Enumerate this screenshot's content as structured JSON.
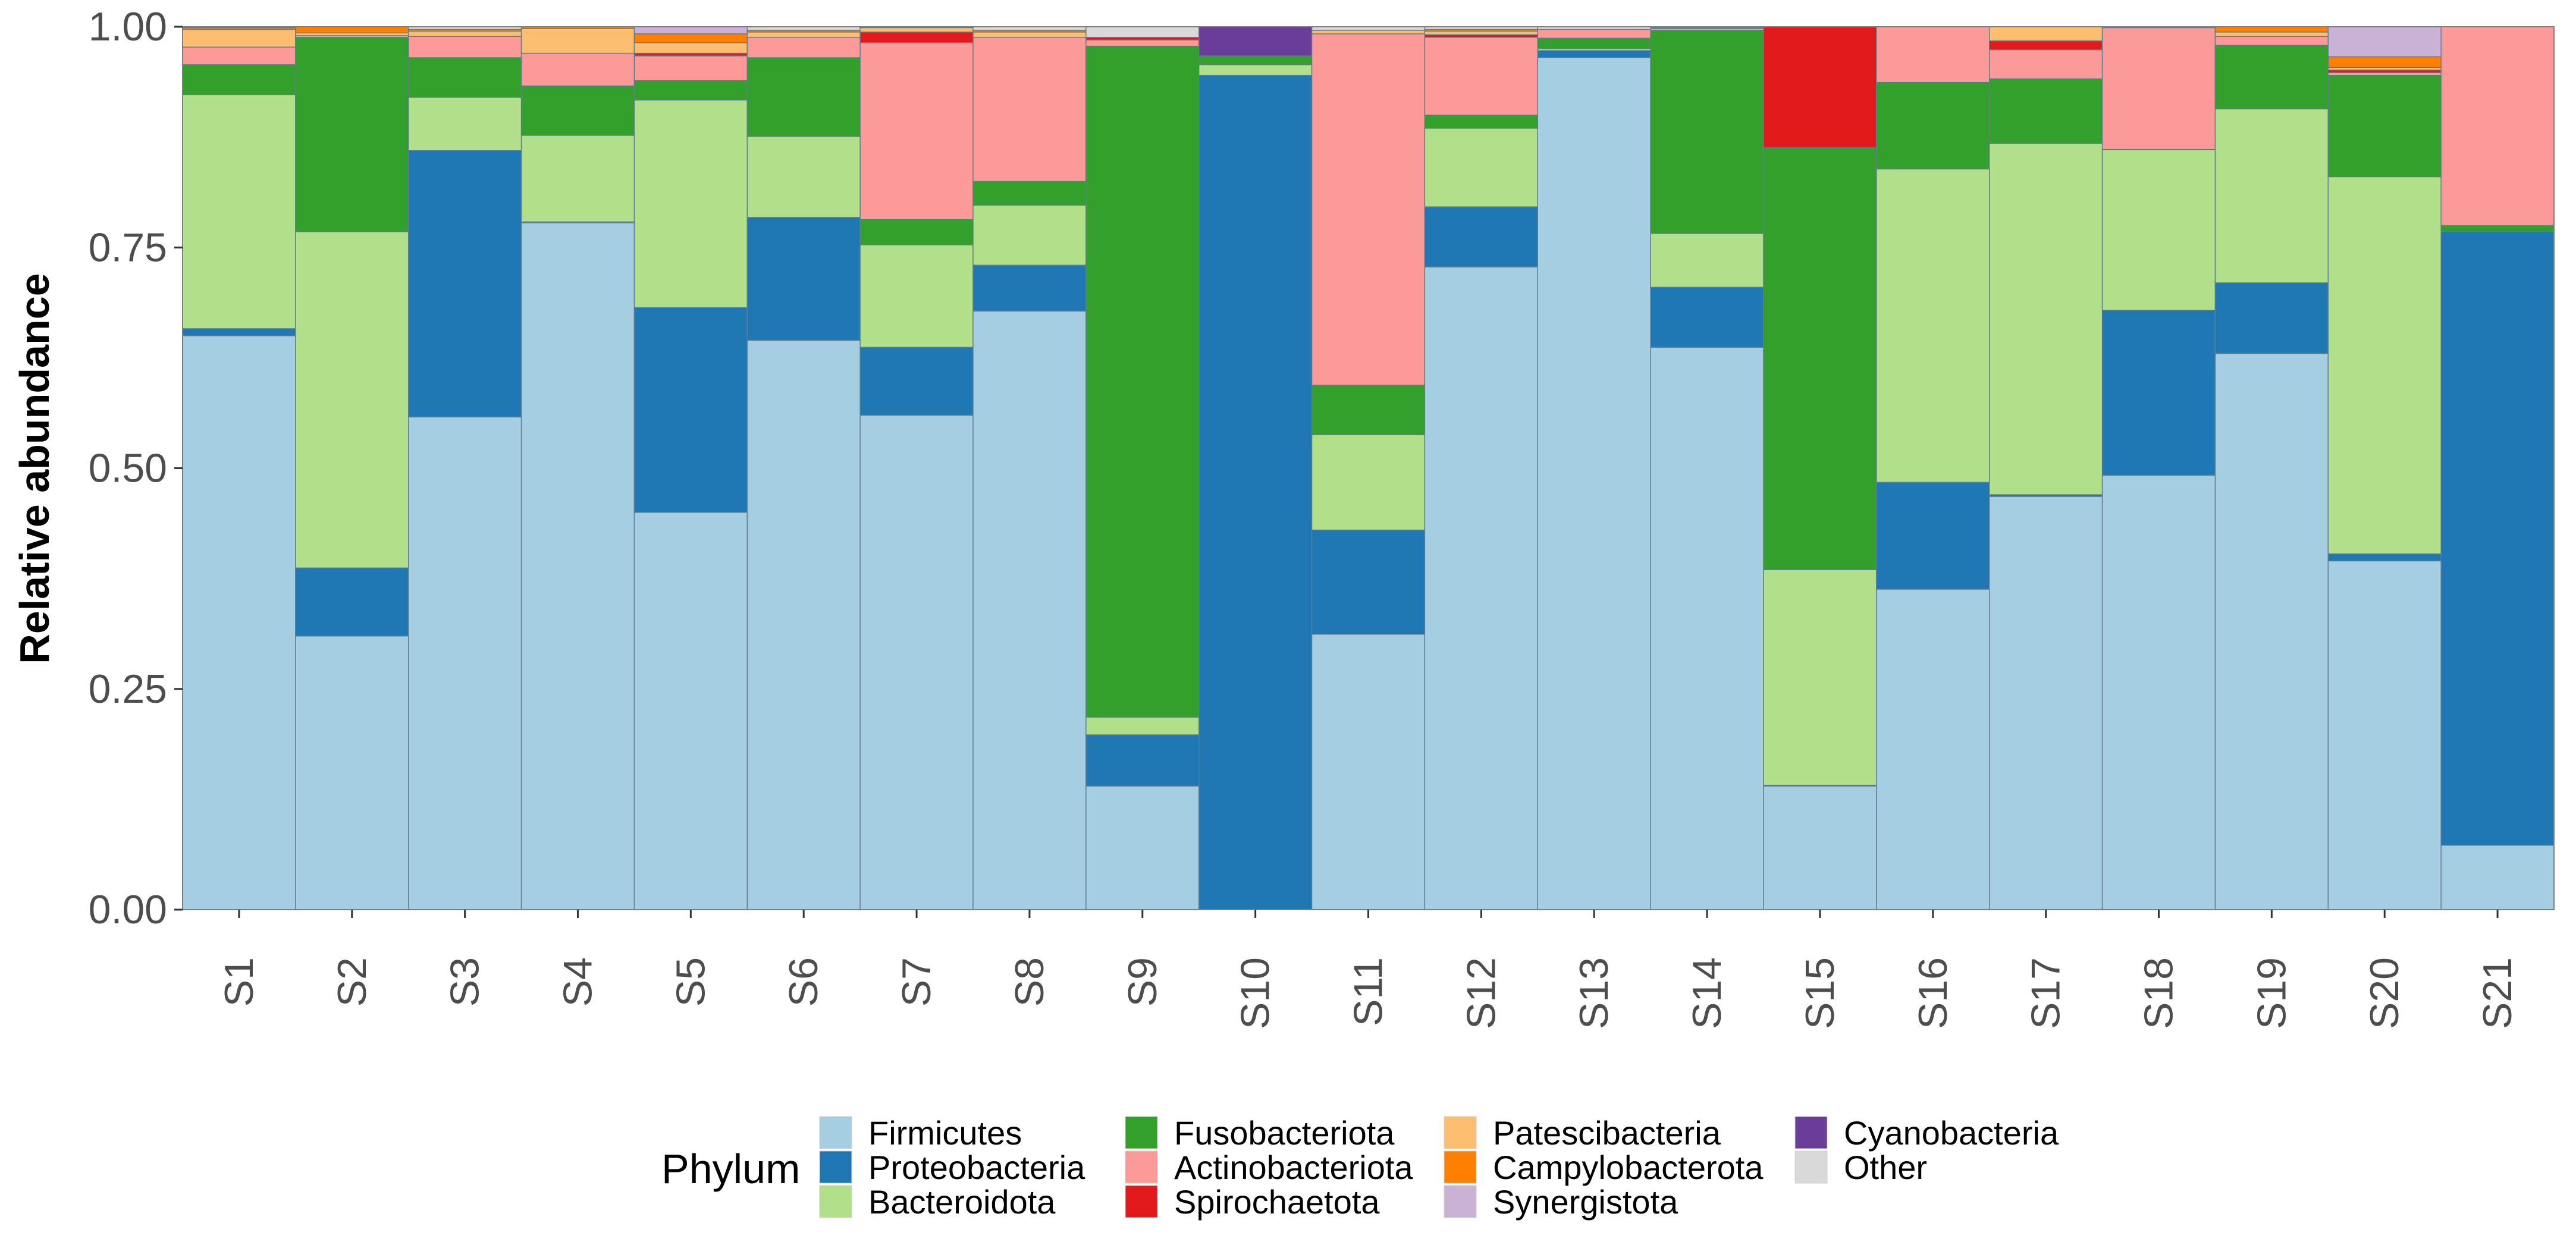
{
  "chart_data": {
    "type": "bar",
    "stacked": true,
    "title": "",
    "xlabel": "",
    "ylabel": "Relative abundance",
    "ylim": [
      0,
      1
    ],
    "yticks": [
      "0.00",
      "0.25",
      "0.50",
      "0.75",
      "1.00"
    ],
    "ytick_values": [
      0,
      0.25,
      0.5,
      0.75,
      1.0
    ],
    "grid": false,
    "legend": {
      "title": "Phylum",
      "position": "bottom"
    },
    "categories": [
      "S1",
      "S2",
      "S3",
      "S4",
      "S5",
      "S6",
      "S7",
      "S8",
      "S9",
      "S10",
      "S11",
      "S12",
      "S13",
      "S14",
      "S15",
      "S16",
      "S17",
      "S18",
      "S19",
      "S20",
      "S21"
    ],
    "series": [
      {
        "name": "Firmicutes",
        "color": "#a6cee3",
        "values": [
          0.65,
          0.31,
          0.558,
          0.778,
          0.45,
          0.645,
          0.56,
          0.678,
          0.14,
          0.0,
          0.312,
          0.728,
          0.965,
          0.637,
          0.14,
          0.363,
          0.468,
          0.492,
          0.63,
          0.395,
          0.073
        ]
      },
      {
        "name": "Proteobacteria",
        "color": "#1f78b4",
        "values": [
          0.008,
          0.077,
          0.302,
          0.001,
          0.232,
          0.139,
          0.077,
          0.052,
          0.058,
          0.945,
          0.118,
          0.068,
          0.008,
          0.068,
          0.001,
          0.121,
          0.002,
          0.187,
          0.08,
          0.008,
          0.695
        ]
      },
      {
        "name": "Bacteroidota",
        "color": "#b2df8a",
        "values": [
          0.265,
          0.381,
          0.06,
          0.098,
          0.235,
          0.092,
          0.116,
          0.068,
          0.02,
          0.012,
          0.108,
          0.089,
          0.002,
          0.061,
          0.244,
          0.355,
          0.398,
          0.182,
          0.197,
          0.427,
          0.0
        ]
      },
      {
        "name": "Fusobacteriota",
        "color": "#33a02c",
        "values": [
          0.034,
          0.22,
          0.045,
          0.056,
          0.022,
          0.089,
          0.029,
          0.027,
          0.76,
          0.01,
          0.056,
          0.015,
          0.012,
          0.23,
          0.478,
          0.098,
          0.073,
          0.0,
          0.072,
          0.115,
          0.007
        ]
      },
      {
        "name": "Actinobacteriota",
        "color": "#fb9a99",
        "values": [
          0.02,
          0.002,
          0.024,
          0.037,
          0.028,
          0.023,
          0.2,
          0.163,
          0.007,
          0.0,
          0.398,
          0.088,
          0.01,
          0.002,
          0.0,
          0.063,
          0.033,
          0.138,
          0.01,
          0.003,
          0.225
        ]
      },
      {
        "name": "Spirochaetota",
        "color": "#e31a1c",
        "values": [
          0.0,
          0.0,
          0.0,
          0.0,
          0.003,
          0.0,
          0.012,
          0.0,
          0.003,
          0.0,
          0.0,
          0.003,
          0.0,
          0.0,
          0.137,
          0.0,
          0.01,
          0.0,
          0.0,
          0.003,
          0.0
        ]
      },
      {
        "name": "Patescibacteria",
        "color": "#fdbf6f",
        "values": [
          0.02,
          0.003,
          0.006,
          0.028,
          0.012,
          0.006,
          0.005,
          0.006,
          0.0,
          0.0,
          0.004,
          0.004,
          0.0,
          0.001,
          0.0,
          0.0,
          0.016,
          0.001,
          0.005,
          0.003,
          0.0
        ]
      },
      {
        "name": "Campylobacterota",
        "color": "#ff7f00",
        "values": [
          0.002,
          0.007,
          0.002,
          0.002,
          0.01,
          0.002,
          0.0,
          0.002,
          0.0,
          0.0,
          0.0,
          0.002,
          0.0,
          0.0,
          0.0,
          0.0,
          0.0,
          0.0,
          0.006,
          0.012,
          0.0
        ]
      },
      {
        "name": "Synergistota",
        "color": "#cab2d6",
        "values": [
          0.0,
          0.0,
          0.0,
          0.0,
          0.008,
          0.0,
          0.0,
          0.0,
          0.0,
          0.0,
          0.0,
          0.0,
          0.0,
          0.0,
          0.0,
          0.0,
          0.0,
          0.0,
          0.0,
          0.034,
          0.0
        ]
      },
      {
        "name": "Cyanobacteria",
        "color": "#6a3d9a",
        "values": [
          0.0,
          0.0,
          0.0,
          0.0,
          0.0,
          0.0,
          0.0,
          0.0,
          0.0,
          0.033,
          0.0,
          0.0,
          0.0,
          0.0,
          0.0,
          0.0,
          0.0,
          0.0,
          0.0,
          0.0,
          0.0
        ]
      },
      {
        "name": "Other",
        "color": "#d9d9d9",
        "values": [
          0.001,
          0.0,
          0.003,
          0.0,
          0.0,
          0.004,
          0.001,
          0.004,
          0.012,
          0.0,
          0.004,
          0.003,
          0.003,
          0.001,
          0.0,
          0.0,
          0.0,
          0.0,
          0.0,
          0.0,
          0.0
        ]
      }
    ]
  }
}
